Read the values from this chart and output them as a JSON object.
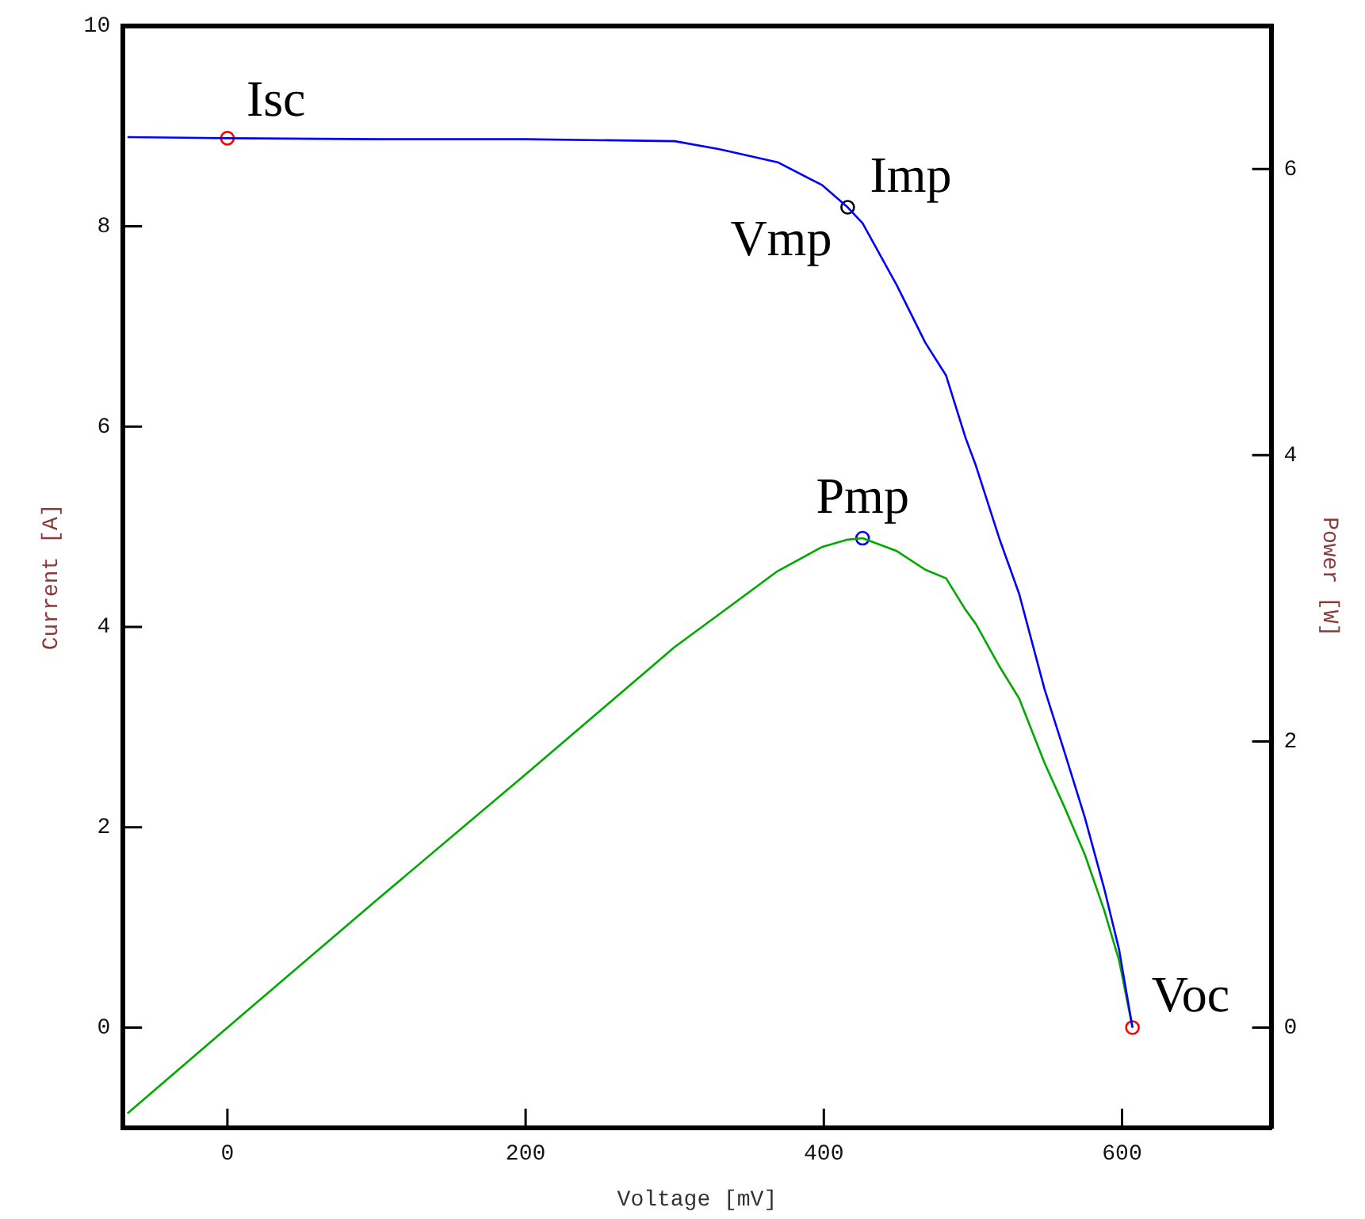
{
  "chart_data": {
    "type": "line",
    "xlabel": "Voltage [mV]",
    "ylabel": "Current [A]",
    "y2label": "Power [W]",
    "x": [
      -67,
      0,
      100,
      200,
      300,
      330,
      369,
      399,
      416,
      426,
      449,
      468,
      482,
      495,
      502,
      518,
      531,
      548,
      561,
      575,
      588,
      598,
      607
    ],
    "xlim": [
      -70,
      700
    ],
    "xticks": [
      0,
      200,
      400,
      600
    ],
    "ylim": [
      -1,
      10
    ],
    "yticks": [
      0,
      2,
      4,
      6,
      8,
      10
    ],
    "y2lim": [
      -0.7,
      7
    ],
    "y2ticks": [
      0,
      2,
      4,
      6
    ],
    "grid": false,
    "legend": false,
    "series": [
      {
        "type": "line",
        "color": "#0000ff",
        "marker": "none",
        "values": [
          8.89,
          8.88,
          8.87,
          8.87,
          8.85,
          8.77,
          8.64,
          8.41,
          8.19,
          8.03,
          7.41,
          6.84,
          6.51,
          5.89,
          5.61,
          4.87,
          4.33,
          3.38,
          2.77,
          2.1,
          1.39,
          0.78,
          0
        ]
      },
      {
        "type": "line",
        "axis": "y2",
        "color": "#00aa00",
        "marker": "none",
        "values": [
          -0.6,
          0,
          0.89,
          1.77,
          2.66,
          2.89,
          3.19,
          3.36,
          3.41,
          3.42,
          3.33,
          3.2,
          3.14,
          2.92,
          2.82,
          2.52,
          2.3,
          1.85,
          1.55,
          1.21,
          0.82,
          0.47,
          0
        ]
      },
      {
        "type": "scatter",
        "marker": "circle",
        "x": [
          0,
          416,
          607
        ],
        "values": [
          8.88,
          8.19,
          0
        ],
        "colors": [
          "#ff0000",
          "#000000",
          "#ff0000"
        ]
      },
      {
        "type": "scatter",
        "axis": "y2",
        "marker": "circle",
        "x": [
          426
        ],
        "values": [
          3.42
        ],
        "colors": [
          "#0000ff"
        ]
      }
    ],
    "annotations": [
      {
        "text": "Isc",
        "x": 0,
        "y": 8.88
      },
      {
        "text": "Imp",
        "x": 416,
        "y": 8.19
      },
      {
        "text": "Vmp",
        "x": 416,
        "y": 8.19
      },
      {
        "text": "Pmp",
        "x": 426,
        "y": 4.89
      },
      {
        "text": "Voc",
        "x": 607,
        "y": 0
      }
    ]
  }
}
